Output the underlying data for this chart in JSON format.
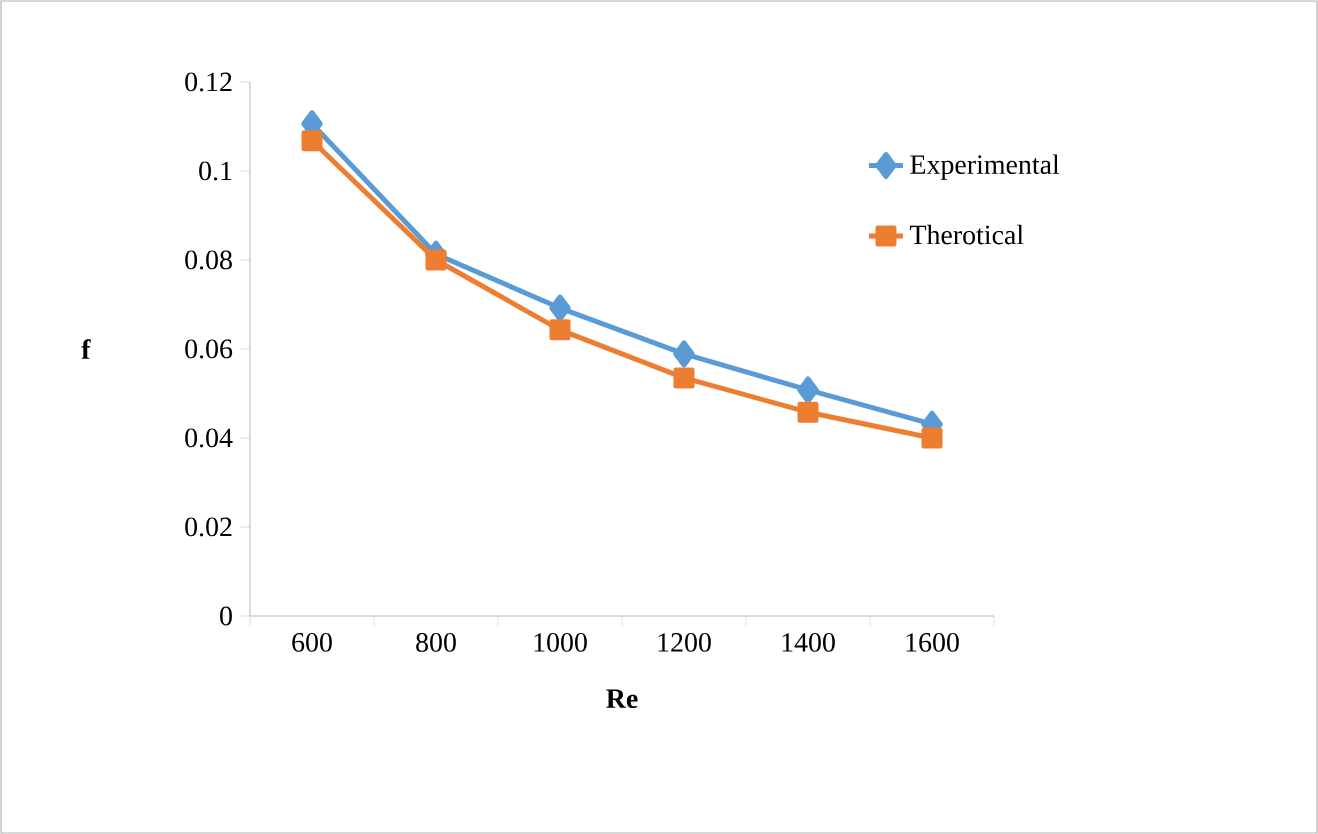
{
  "chart_data": {
    "type": "line",
    "xlabel": "Re",
    "ylabel": "f",
    "categories": [
      "600",
      "800",
      "1000",
      "1200",
      "1400",
      "1600"
    ],
    "series": [
      {
        "name": "Experimental",
        "color": "#5b9bd5",
        "marker": "diamond",
        "values": [
          0.1106,
          0.0813,
          0.0692,
          0.0589,
          0.0508,
          0.0431
        ]
      },
      {
        "name": "Therotical",
        "color": "#ed7d31",
        "marker": "square",
        "values": [
          0.1068,
          0.08,
          0.0643,
          0.0535,
          0.0458,
          0.04
        ]
      }
    ],
    "ylim": [
      0,
      0.12
    ],
    "yticks": [
      0,
      0.02,
      0.04,
      0.06,
      0.08,
      0.1,
      0.12
    ],
    "grid": false,
    "legend": "right"
  }
}
